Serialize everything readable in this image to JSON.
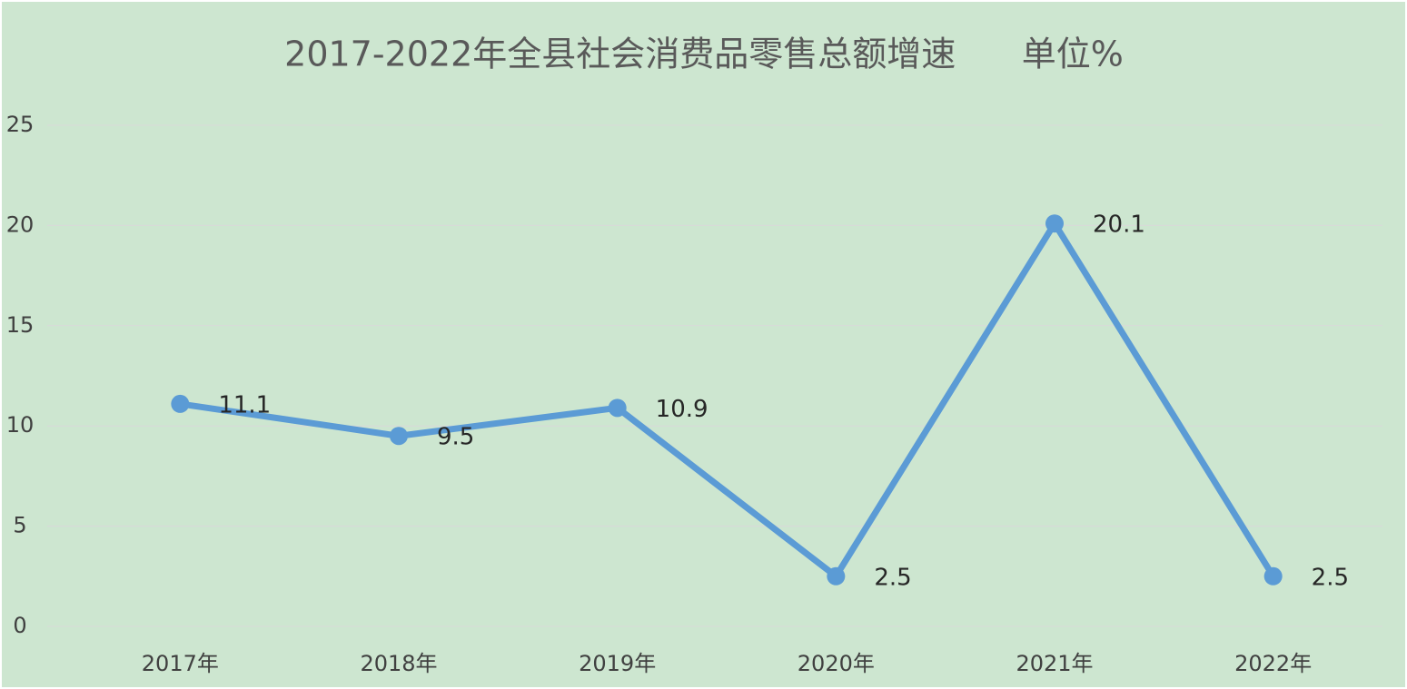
{
  "chart_data": {
    "type": "line",
    "title": "2017-2022年全县社会消费品零售总额增速      单位%",
    "categories": [
      "2017年",
      "2018年",
      "2019年",
      "2020年",
      "2021年",
      "2022年"
    ],
    "values": [
      11.1,
      9.5,
      10.9,
      2.5,
      20.1,
      2.5
    ],
    "color": "#5b9bd5",
    "ylim": [
      0,
      25
    ],
    "yticks": [
      0,
      5,
      10,
      15,
      20,
      25
    ],
    "grid": true
  }
}
